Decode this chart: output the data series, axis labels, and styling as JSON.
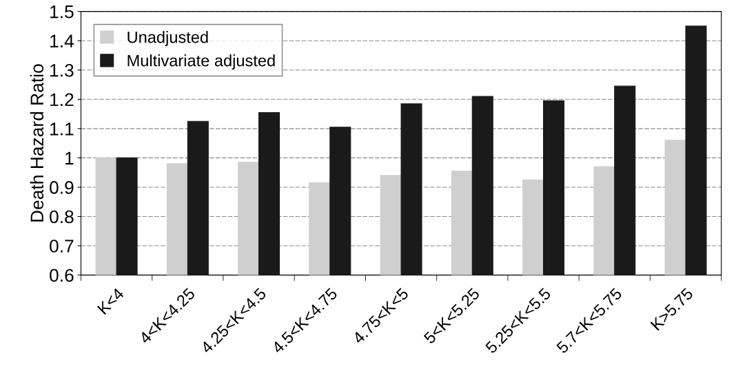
{
  "chart_data": {
    "type": "bar",
    "ylabel": "Death Hazard Ratio",
    "categories": [
      "K<4",
      "4<K<4.25",
      "4.25<K<4.5",
      "4.5<K<4.75",
      "4.75<K<5",
      "5<K<5.25",
      "5.25<K<5.5",
      "5.7<K<5.75",
      "K>5.75"
    ],
    "series": [
      {
        "name": "Unadjusted",
        "color": "#cfcfcf",
        "values": [
          1.0,
          0.98,
          0.985,
          0.915,
          0.94,
          0.955,
          0.925,
          0.97,
          1.06
        ]
      },
      {
        "name": "Multivariate adjusted",
        "color": "#1a1a1a",
        "values": [
          1.0,
          1.125,
          1.155,
          1.105,
          1.185,
          1.21,
          1.195,
          1.245,
          1.45
        ]
      }
    ],
    "ylim": [
      0.6,
      1.5
    ],
    "yticks": [
      0.6,
      0.7,
      0.8,
      0.9,
      1,
      1.1,
      1.2,
      1.3,
      1.4,
      1.5
    ],
    "grid": "y",
    "legend": "top left"
  }
}
